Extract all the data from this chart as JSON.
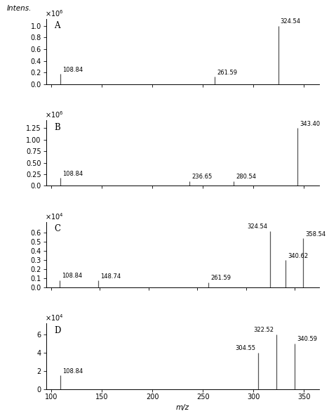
{
  "panels": [
    {
      "label": "A",
      "scale_exp": 6,
      "peaks": [
        {
          "mz": 108.84,
          "intensity": 0.18,
          "label": "108.84",
          "label_side": "right"
        },
        {
          "mz": 261.59,
          "intensity": 0.13,
          "label": "261.59",
          "label_side": "right"
        },
        {
          "mz": 324.54,
          "intensity": 1.0,
          "label": "324.54",
          "label_side": "right"
        }
      ],
      "ylim": [
        0,
        1.12
      ],
      "yticks": [
        0.0,
        0.2,
        0.4,
        0.6,
        0.8,
        1.0
      ],
      "ytick_labels": [
        "0.0",
        "0.2",
        "0.4",
        "0.6",
        "0.8",
        "1.0"
      ],
      "xlim": [
        95,
        365
      ]
    },
    {
      "label": "B",
      "scale_exp": 6,
      "peaks": [
        {
          "mz": 108.84,
          "intensity": 0.175,
          "label": "108.84",
          "label_side": "right"
        },
        {
          "mz": 236.65,
          "intensity": 0.105,
          "label": "236.65",
          "label_side": "right"
        },
        {
          "mz": 280.54,
          "intensity": 0.105,
          "label": "280.54",
          "label_side": "right"
        },
        {
          "mz": 343.4,
          "intensity": 1.25,
          "label": "343.40",
          "label_side": "right"
        }
      ],
      "ylim": [
        0,
        1.42
      ],
      "yticks": [
        0.0,
        0.25,
        0.5,
        0.75,
        1.0,
        1.25
      ],
      "ytick_labels": [
        "0.0",
        "0.25",
        "0.50",
        "0.75",
        "1.00",
        "1.25"
      ],
      "xlim": [
        95,
        365
      ]
    },
    {
      "label": "C",
      "scale_exp": 4,
      "peaks": [
        {
          "mz": 108.84,
          "intensity": 0.08,
          "label": "108.84",
          "label_side": "right"
        },
        {
          "mz": 148.74,
          "intensity": 0.075,
          "label": "148.74",
          "label_side": "right"
        },
        {
          "mz": 261.59,
          "intensity": 0.055,
          "label": "261.59",
          "label_side": "right"
        },
        {
          "mz": 324.54,
          "intensity": 0.62,
          "label": "324.54",
          "label_side": "left"
        },
        {
          "mz": 340.62,
          "intensity": 0.3,
          "label": "340.62",
          "label_side": "right"
        },
        {
          "mz": 358.54,
          "intensity": 0.54,
          "label": "358.54",
          "label_side": "right"
        }
      ],
      "ylim": [
        0,
        0.72
      ],
      "yticks": [
        0.0,
        0.1,
        0.2,
        0.3,
        0.4,
        0.5,
        0.6
      ],
      "ytick_labels": [
        "0.0",
        "0.1",
        "0.2",
        "0.3",
        "0.4",
        "0.5",
        "0.6"
      ],
      "xlim": [
        95,
        375
      ]
    },
    {
      "label": "D",
      "scale_exp": 4,
      "peaks": [
        {
          "mz": 108.84,
          "intensity": 1.5,
          "label": "108.84",
          "label_side": "right"
        },
        {
          "mz": 304.55,
          "intensity": 4.0,
          "label": "304.55",
          "label_side": "left"
        },
        {
          "mz": 322.52,
          "intensity": 6.0,
          "label": "322.52",
          "label_side": "left"
        },
        {
          "mz": 340.59,
          "intensity": 5.0,
          "label": "340.59",
          "label_side": "right"
        }
      ],
      "ylim": [
        0,
        7.2
      ],
      "yticks": [
        0,
        2,
        4,
        6
      ],
      "ytick_labels": [
        "0",
        "2",
        "4",
        "6"
      ],
      "xlim": [
        95,
        365
      ]
    }
  ],
  "xlabel": "m/z",
  "xticks": [
    100,
    150,
    200,
    250,
    300,
    350
  ],
  "peak_color": "#555555",
  "label_fontsize": 6.0,
  "tick_fontsize": 7.0,
  "axis_label_fontsize": 7.5,
  "panel_label_fontsize": 8.5,
  "scale_fontsize": 7.0,
  "intens_label": "Intens.",
  "background_color": "#ffffff"
}
